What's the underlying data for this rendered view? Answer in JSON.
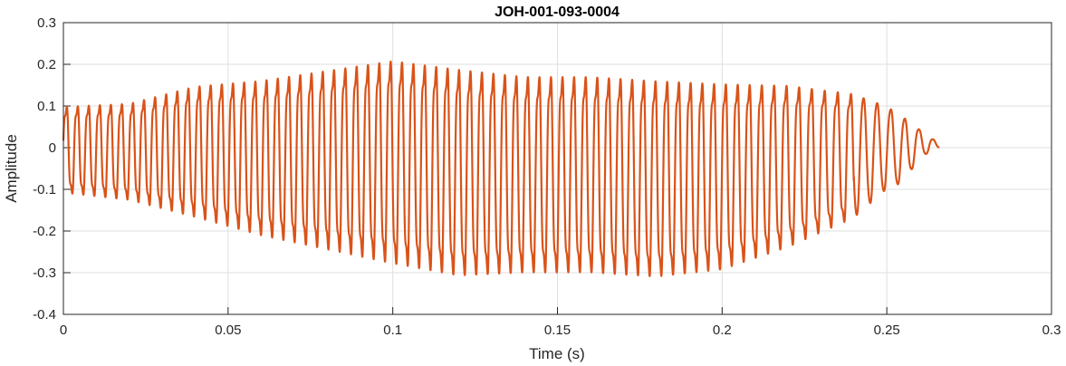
{
  "chart_data": {
    "type": "line",
    "title": "JOH-001-093-0004",
    "xlabel": "Time (s)",
    "ylabel": "Amplitude",
    "xlim": [
      0,
      0.3
    ],
    "ylim": [
      -0.4,
      0.3
    ],
    "xticks": [
      "0",
      "0.05",
      "0.1",
      "0.15",
      "0.2",
      "0.25",
      "0.3"
    ],
    "xtick_values": [
      0,
      0.05,
      0.1,
      0.15,
      0.2,
      0.25,
      0.3
    ],
    "yticks": [
      "0.3",
      "0.2",
      "0.1",
      "0",
      "-0.1",
      "-0.2",
      "-0.3",
      "-0.4"
    ],
    "ytick_values": [
      0.3,
      0.2,
      0.1,
      0,
      -0.1,
      -0.2,
      -0.3,
      -0.4
    ],
    "grid": true,
    "series_color": "#D95319",
    "signal_end_time": 0.266,
    "envelope": {
      "t": [
        0,
        0.02,
        0.04,
        0.06,
        0.08,
        0.1,
        0.12,
        0.14,
        0.16,
        0.18,
        0.2,
        0.22,
        0.24,
        0.25,
        0.255,
        0.26,
        0.266
      ],
      "upper": [
        0.12,
        0.13,
        0.18,
        0.2,
        0.23,
        0.26,
        0.24,
        0.22,
        0.22,
        0.21,
        0.2,
        0.19,
        0.16,
        0.12,
        0.09,
        0.05,
        0.01
      ],
      "lower": [
        -0.13,
        -0.15,
        -0.2,
        -0.25,
        -0.29,
        -0.33,
        -0.36,
        -0.35,
        -0.35,
        -0.36,
        -0.34,
        -0.28,
        -0.2,
        -0.12,
        -0.1,
        -0.03,
        0.0
      ]
    },
    "approx_frequency_hz": {
      "t": [
        0,
        0.2,
        0.26
      ],
      "f": [
        300,
        280,
        230
      ]
    }
  }
}
